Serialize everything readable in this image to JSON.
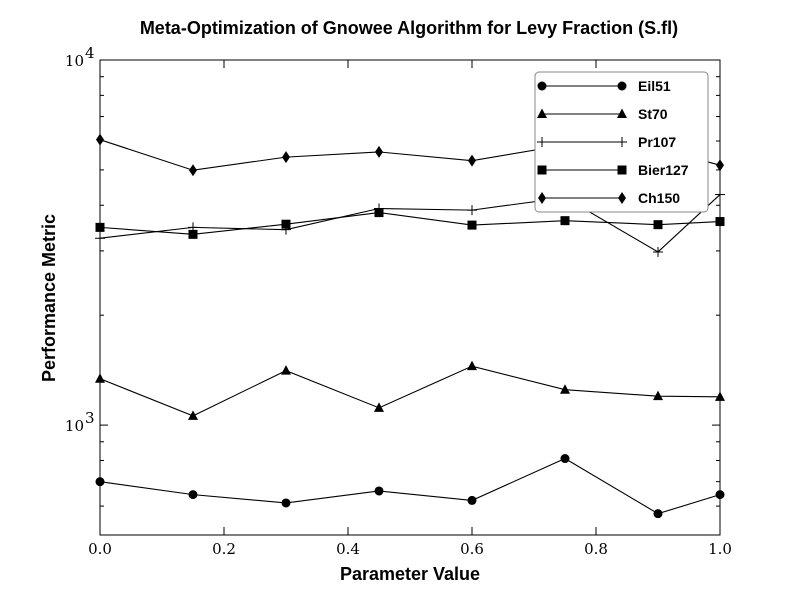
{
  "chart_data": {
    "type": "line",
    "title": "Meta-Optimization of Gnowee Algorithm for Levy Fraction (S.fl)",
    "xlabel": "Parameter Value",
    "ylabel": "Performance Metric",
    "xlim": [
      0.0,
      1.0
    ],
    "ylim": [
      500,
      10000
    ],
    "yscale": "log",
    "grid": false,
    "legend_position": "top-right",
    "x_ticks": [
      0.0,
      0.2,
      0.4,
      0.6,
      0.8,
      1.0
    ],
    "x_tick_labels": [
      "0.0",
      "0.2",
      "0.4",
      "0.6",
      "0.8",
      "1.0"
    ],
    "y_major_ticks": [
      1000,
      10000
    ],
    "y_tick_labels": [
      {
        "base": "10",
        "exp": "3"
      },
      {
        "base": "10",
        "exp": "4"
      }
    ],
    "x": [
      0.0,
      0.15,
      0.3,
      0.45,
      0.6,
      0.75,
      0.9,
      1.0
    ],
    "series": [
      {
        "name": "Eil51",
        "marker": "circle",
        "values": [
          700,
          645,
          612,
          660,
          622,
          810,
          572,
          645
        ]
      },
      {
        "name": "St70",
        "marker": "triangle",
        "values": [
          1340,
          1060,
          1410,
          1115,
          1450,
          1250,
          1200,
          1195
        ]
      },
      {
        "name": "Pr107",
        "marker": "plus",
        "values": [
          3250,
          3480,
          3430,
          3920,
          3880,
          4200,
          2980,
          4280
        ]
      },
      {
        "name": "Bier127",
        "marker": "square",
        "values": [
          3480,
          3330,
          3550,
          3820,
          3530,
          3630,
          3540,
          3610
        ]
      },
      {
        "name": "Ch150",
        "marker": "diamond",
        "values": [
          6050,
          4990,
          5420,
          5600,
          5300,
          5850,
          5720,
          5150
        ]
      }
    ]
  }
}
